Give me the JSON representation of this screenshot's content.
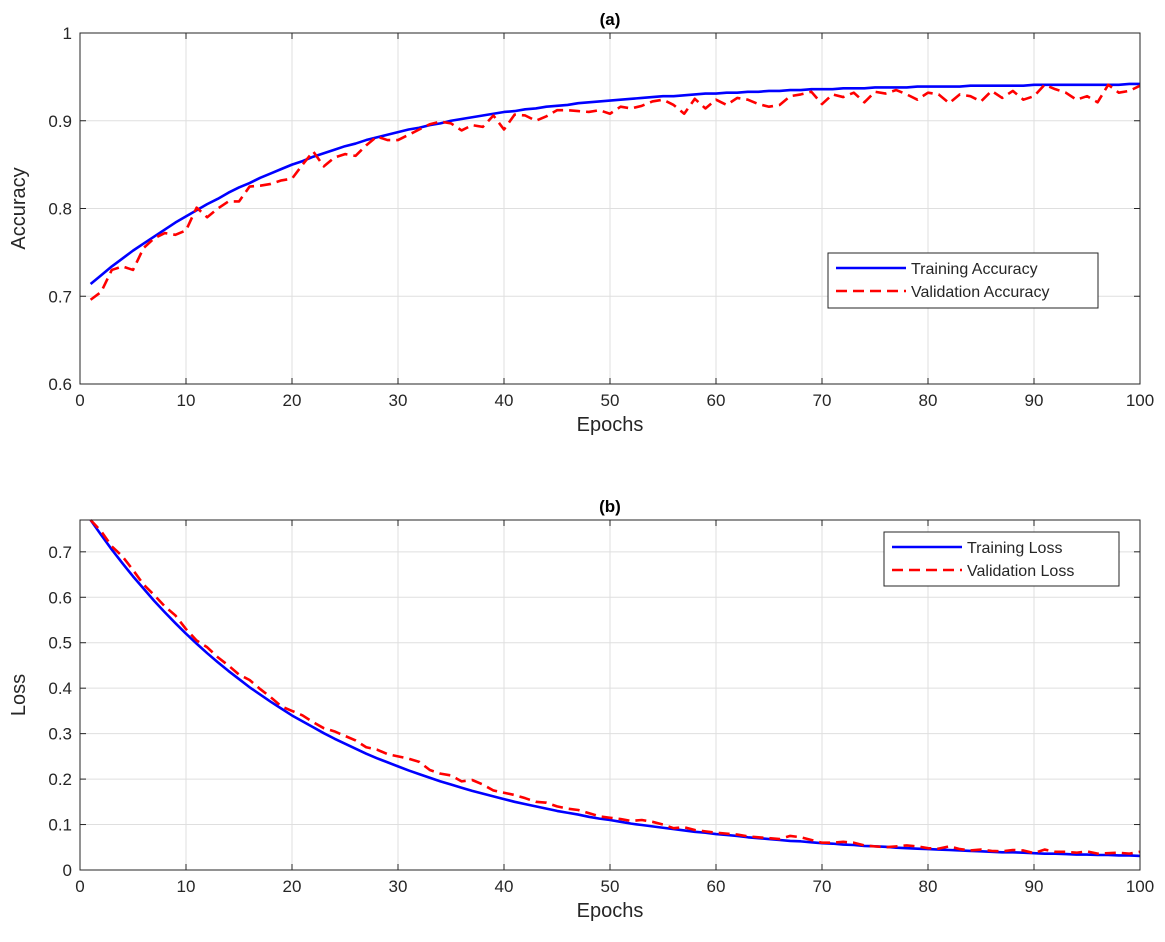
{
  "chart_data": [
    {
      "type": "line",
      "title": "(a)",
      "xlabel": "Epochs",
      "ylabel": "Accuracy",
      "xlim": [
        0,
        100
      ],
      "ylim": [
        0.6,
        1
      ],
      "xticks": [
        0,
        10,
        20,
        30,
        40,
        50,
        60,
        70,
        80,
        90,
        100
      ],
      "yticks": [
        0.6,
        0.7,
        0.8,
        0.9,
        1
      ],
      "ytick_labels": [
        "0.6",
        "0.7",
        "0.8",
        "0.9",
        "1"
      ],
      "grid": true,
      "legend": "center-right",
      "x": [
        1,
        2,
        3,
        4,
        5,
        6,
        7,
        8,
        9,
        10,
        11,
        12,
        13,
        14,
        15,
        16,
        17,
        18,
        19,
        20,
        21,
        22,
        23,
        24,
        25,
        26,
        27,
        28,
        29,
        30,
        31,
        32,
        33,
        34,
        35,
        36,
        37,
        38,
        39,
        40,
        41,
        42,
        43,
        44,
        45,
        46,
        47,
        48,
        49,
        50,
        51,
        52,
        53,
        54,
        55,
        56,
        57,
        58,
        59,
        60,
        61,
        62,
        63,
        64,
        65,
        66,
        67,
        68,
        69,
        70,
        71,
        72,
        73,
        74,
        75,
        76,
        77,
        78,
        79,
        80,
        81,
        82,
        83,
        84,
        85,
        86,
        87,
        88,
        89,
        90,
        91,
        92,
        93,
        94,
        95,
        96,
        97,
        98,
        99,
        100
      ],
      "series": [
        {
          "name": "Training Accuracy",
          "color": "#0000ff",
          "style": "solid",
          "values": [
            0.714,
            0.724,
            0.734,
            0.743,
            0.752,
            0.76,
            0.768,
            0.776,
            0.784,
            0.791,
            0.798,
            0.805,
            0.811,
            0.818,
            0.824,
            0.829,
            0.835,
            0.84,
            0.845,
            0.85,
            0.854,
            0.859,
            0.863,
            0.867,
            0.871,
            0.874,
            0.878,
            0.881,
            0.884,
            0.887,
            0.89,
            0.892,
            0.895,
            0.897,
            0.9,
            0.902,
            0.904,
            0.906,
            0.908,
            0.91,
            0.911,
            0.913,
            0.914,
            0.916,
            0.917,
            0.918,
            0.92,
            0.921,
            0.922,
            0.923,
            0.924,
            0.925,
            0.926,
            0.927,
            0.928,
            0.928,
            0.929,
            0.93,
            0.931,
            0.931,
            0.932,
            0.932,
            0.933,
            0.933,
            0.934,
            0.934,
            0.935,
            0.935,
            0.936,
            0.936,
            0.936,
            0.937,
            0.937,
            0.937,
            0.938,
            0.938,
            0.938,
            0.938,
            0.939,
            0.939,
            0.939,
            0.939,
            0.939,
            0.94,
            0.94,
            0.94,
            0.94,
            0.94,
            0.94,
            0.941,
            0.941,
            0.941,
            0.941,
            0.941,
            0.941,
            0.941,
            0.941,
            0.941,
            0.942,
            0.942
          ]
        },
        {
          "name": "Validation Accuracy",
          "color": "#ff0000",
          "style": "dashed",
          "values": [
            0.696,
            0.705,
            0.73,
            0.734,
            0.73,
            0.755,
            0.766,
            0.772,
            0.77,
            0.775,
            0.801,
            0.79,
            0.8,
            0.808,
            0.808,
            0.825,
            0.826,
            0.828,
            0.832,
            0.834,
            0.85,
            0.865,
            0.848,
            0.858,
            0.862,
            0.86,
            0.872,
            0.882,
            0.878,
            0.878,
            0.884,
            0.89,
            0.896,
            0.899,
            0.897,
            0.889,
            0.895,
            0.893,
            0.906,
            0.89,
            0.907,
            0.906,
            0.9,
            0.905,
            0.912,
            0.912,
            0.911,
            0.91,
            0.912,
            0.908,
            0.916,
            0.914,
            0.917,
            0.922,
            0.924,
            0.918,
            0.908,
            0.925,
            0.914,
            0.924,
            0.918,
            0.926,
            0.924,
            0.919,
            0.916,
            0.918,
            0.928,
            0.93,
            0.933,
            0.919,
            0.93,
            0.927,
            0.932,
            0.921,
            0.933,
            0.931,
            0.935,
            0.93,
            0.924,
            0.932,
            0.93,
            0.92,
            0.93,
            0.928,
            0.922,
            0.934,
            0.926,
            0.934,
            0.924,
            0.928,
            0.941,
            0.936,
            0.932,
            0.924,
            0.928,
            0.921,
            0.941,
            0.932,
            0.934,
            0.94
          ]
        }
      ]
    },
    {
      "type": "line",
      "title": "(b)",
      "xlabel": "Epochs",
      "ylabel": "Loss",
      "xlim": [
        0,
        100
      ],
      "ylim": [
        0,
        0.77
      ],
      "xticks": [
        0,
        10,
        20,
        30,
        40,
        50,
        60,
        70,
        80,
        90,
        100
      ],
      "yticks": [
        0,
        0.1,
        0.2,
        0.3,
        0.4,
        0.5,
        0.6,
        0.7
      ],
      "ytick_labels": [
        "0",
        "0.1",
        "0.2",
        "0.3",
        "0.4",
        "0.5",
        "0.6",
        "0.7"
      ],
      "grid": true,
      "legend": "top-right",
      "x": [
        1,
        2,
        3,
        4,
        5,
        6,
        7,
        8,
        9,
        10,
        11,
        12,
        13,
        14,
        15,
        16,
        17,
        18,
        19,
        20,
        21,
        22,
        23,
        24,
        25,
        26,
        27,
        28,
        29,
        30,
        31,
        32,
        33,
        34,
        35,
        36,
        37,
        38,
        39,
        40,
        41,
        42,
        43,
        44,
        45,
        46,
        47,
        48,
        49,
        50,
        51,
        52,
        53,
        54,
        55,
        56,
        57,
        58,
        59,
        60,
        61,
        62,
        63,
        64,
        65,
        66,
        67,
        68,
        69,
        70,
        71,
        72,
        73,
        74,
        75,
        76,
        77,
        78,
        79,
        80,
        81,
        82,
        83,
        84,
        85,
        86,
        87,
        88,
        89,
        90,
        91,
        92,
        93,
        94,
        95,
        96,
        97,
        98,
        99,
        100
      ],
      "series": [
        {
          "name": "Training Loss",
          "color": "#0000ff",
          "style": "solid",
          "values": [
            0.77,
            0.737,
            0.705,
            0.675,
            0.646,
            0.619,
            0.592,
            0.567,
            0.543,
            0.52,
            0.498,
            0.477,
            0.457,
            0.438,
            0.42,
            0.402,
            0.386,
            0.37,
            0.355,
            0.34,
            0.327,
            0.314,
            0.301,
            0.289,
            0.278,
            0.267,
            0.256,
            0.246,
            0.237,
            0.228,
            0.219,
            0.211,
            0.203,
            0.195,
            0.188,
            0.181,
            0.174,
            0.168,
            0.162,
            0.156,
            0.15,
            0.145,
            0.14,
            0.135,
            0.13,
            0.126,
            0.122,
            0.117,
            0.113,
            0.11,
            0.106,
            0.102,
            0.099,
            0.096,
            0.093,
            0.09,
            0.087,
            0.084,
            0.082,
            0.079,
            0.077,
            0.075,
            0.072,
            0.07,
            0.068,
            0.066,
            0.064,
            0.063,
            0.061,
            0.059,
            0.058,
            0.056,
            0.055,
            0.053,
            0.052,
            0.051,
            0.049,
            0.048,
            0.047,
            0.046,
            0.045,
            0.044,
            0.043,
            0.042,
            0.041,
            0.04,
            0.039,
            0.039,
            0.038,
            0.037,
            0.036,
            0.036,
            0.035,
            0.034,
            0.034,
            0.033,
            0.033,
            0.032,
            0.032,
            0.031
          ]
        },
        {
          "name": "Validation Loss",
          "color": "#ff0000",
          "style": "dashed",
          "values": [
            0.77,
            0.745,
            0.712,
            0.69,
            0.66,
            0.628,
            0.605,
            0.58,
            0.56,
            0.53,
            0.505,
            0.49,
            0.468,
            0.45,
            0.43,
            0.418,
            0.398,
            0.38,
            0.36,
            0.35,
            0.34,
            0.325,
            0.312,
            0.305,
            0.295,
            0.285,
            0.27,
            0.265,
            0.255,
            0.25,
            0.245,
            0.238,
            0.22,
            0.212,
            0.208,
            0.195,
            0.198,
            0.188,
            0.175,
            0.17,
            0.165,
            0.158,
            0.15,
            0.148,
            0.14,
            0.135,
            0.132,
            0.125,
            0.118,
            0.115,
            0.112,
            0.108,
            0.11,
            0.106,
            0.1,
            0.092,
            0.094,
            0.088,
            0.085,
            0.082,
            0.08,
            0.078,
            0.074,
            0.072,
            0.07,
            0.068,
            0.075,
            0.072,
            0.066,
            0.06,
            0.06,
            0.062,
            0.06,
            0.054,
            0.052,
            0.05,
            0.052,
            0.054,
            0.052,
            0.048,
            0.047,
            0.052,
            0.046,
            0.043,
            0.045,
            0.042,
            0.041,
            0.044,
            0.043,
            0.037,
            0.045,
            0.04,
            0.04,
            0.038,
            0.041,
            0.036,
            0.037,
            0.038,
            0.036,
            0.04
          ]
        }
      ]
    }
  ]
}
